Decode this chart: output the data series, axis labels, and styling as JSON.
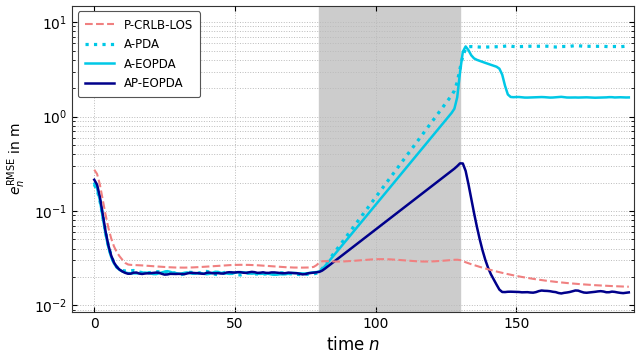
{
  "xlabel": "time $n$",
  "ylabel": "$e_n^{\\mathrm{RMSE}}$ in m",
  "xlim": [
    -8,
    192
  ],
  "ylim_min": 0.0085,
  "ylim_max": 15.0,
  "shade_xmin": 80,
  "shade_xmax": 130,
  "shade_color": "#cccccc",
  "grid_color": "#bbbbbb",
  "color_pcrlb": "#f08080",
  "color_cyan": "#00c8e6",
  "color_darkblue": "#00008b",
  "xticks": [
    0,
    50,
    100,
    150
  ],
  "legend_labels": [
    "P-CRLB-LOS",
    "A-PDA",
    "A-EOPDA",
    "AP-EOPDA"
  ],
  "fig_bg": "#f5f5f5"
}
